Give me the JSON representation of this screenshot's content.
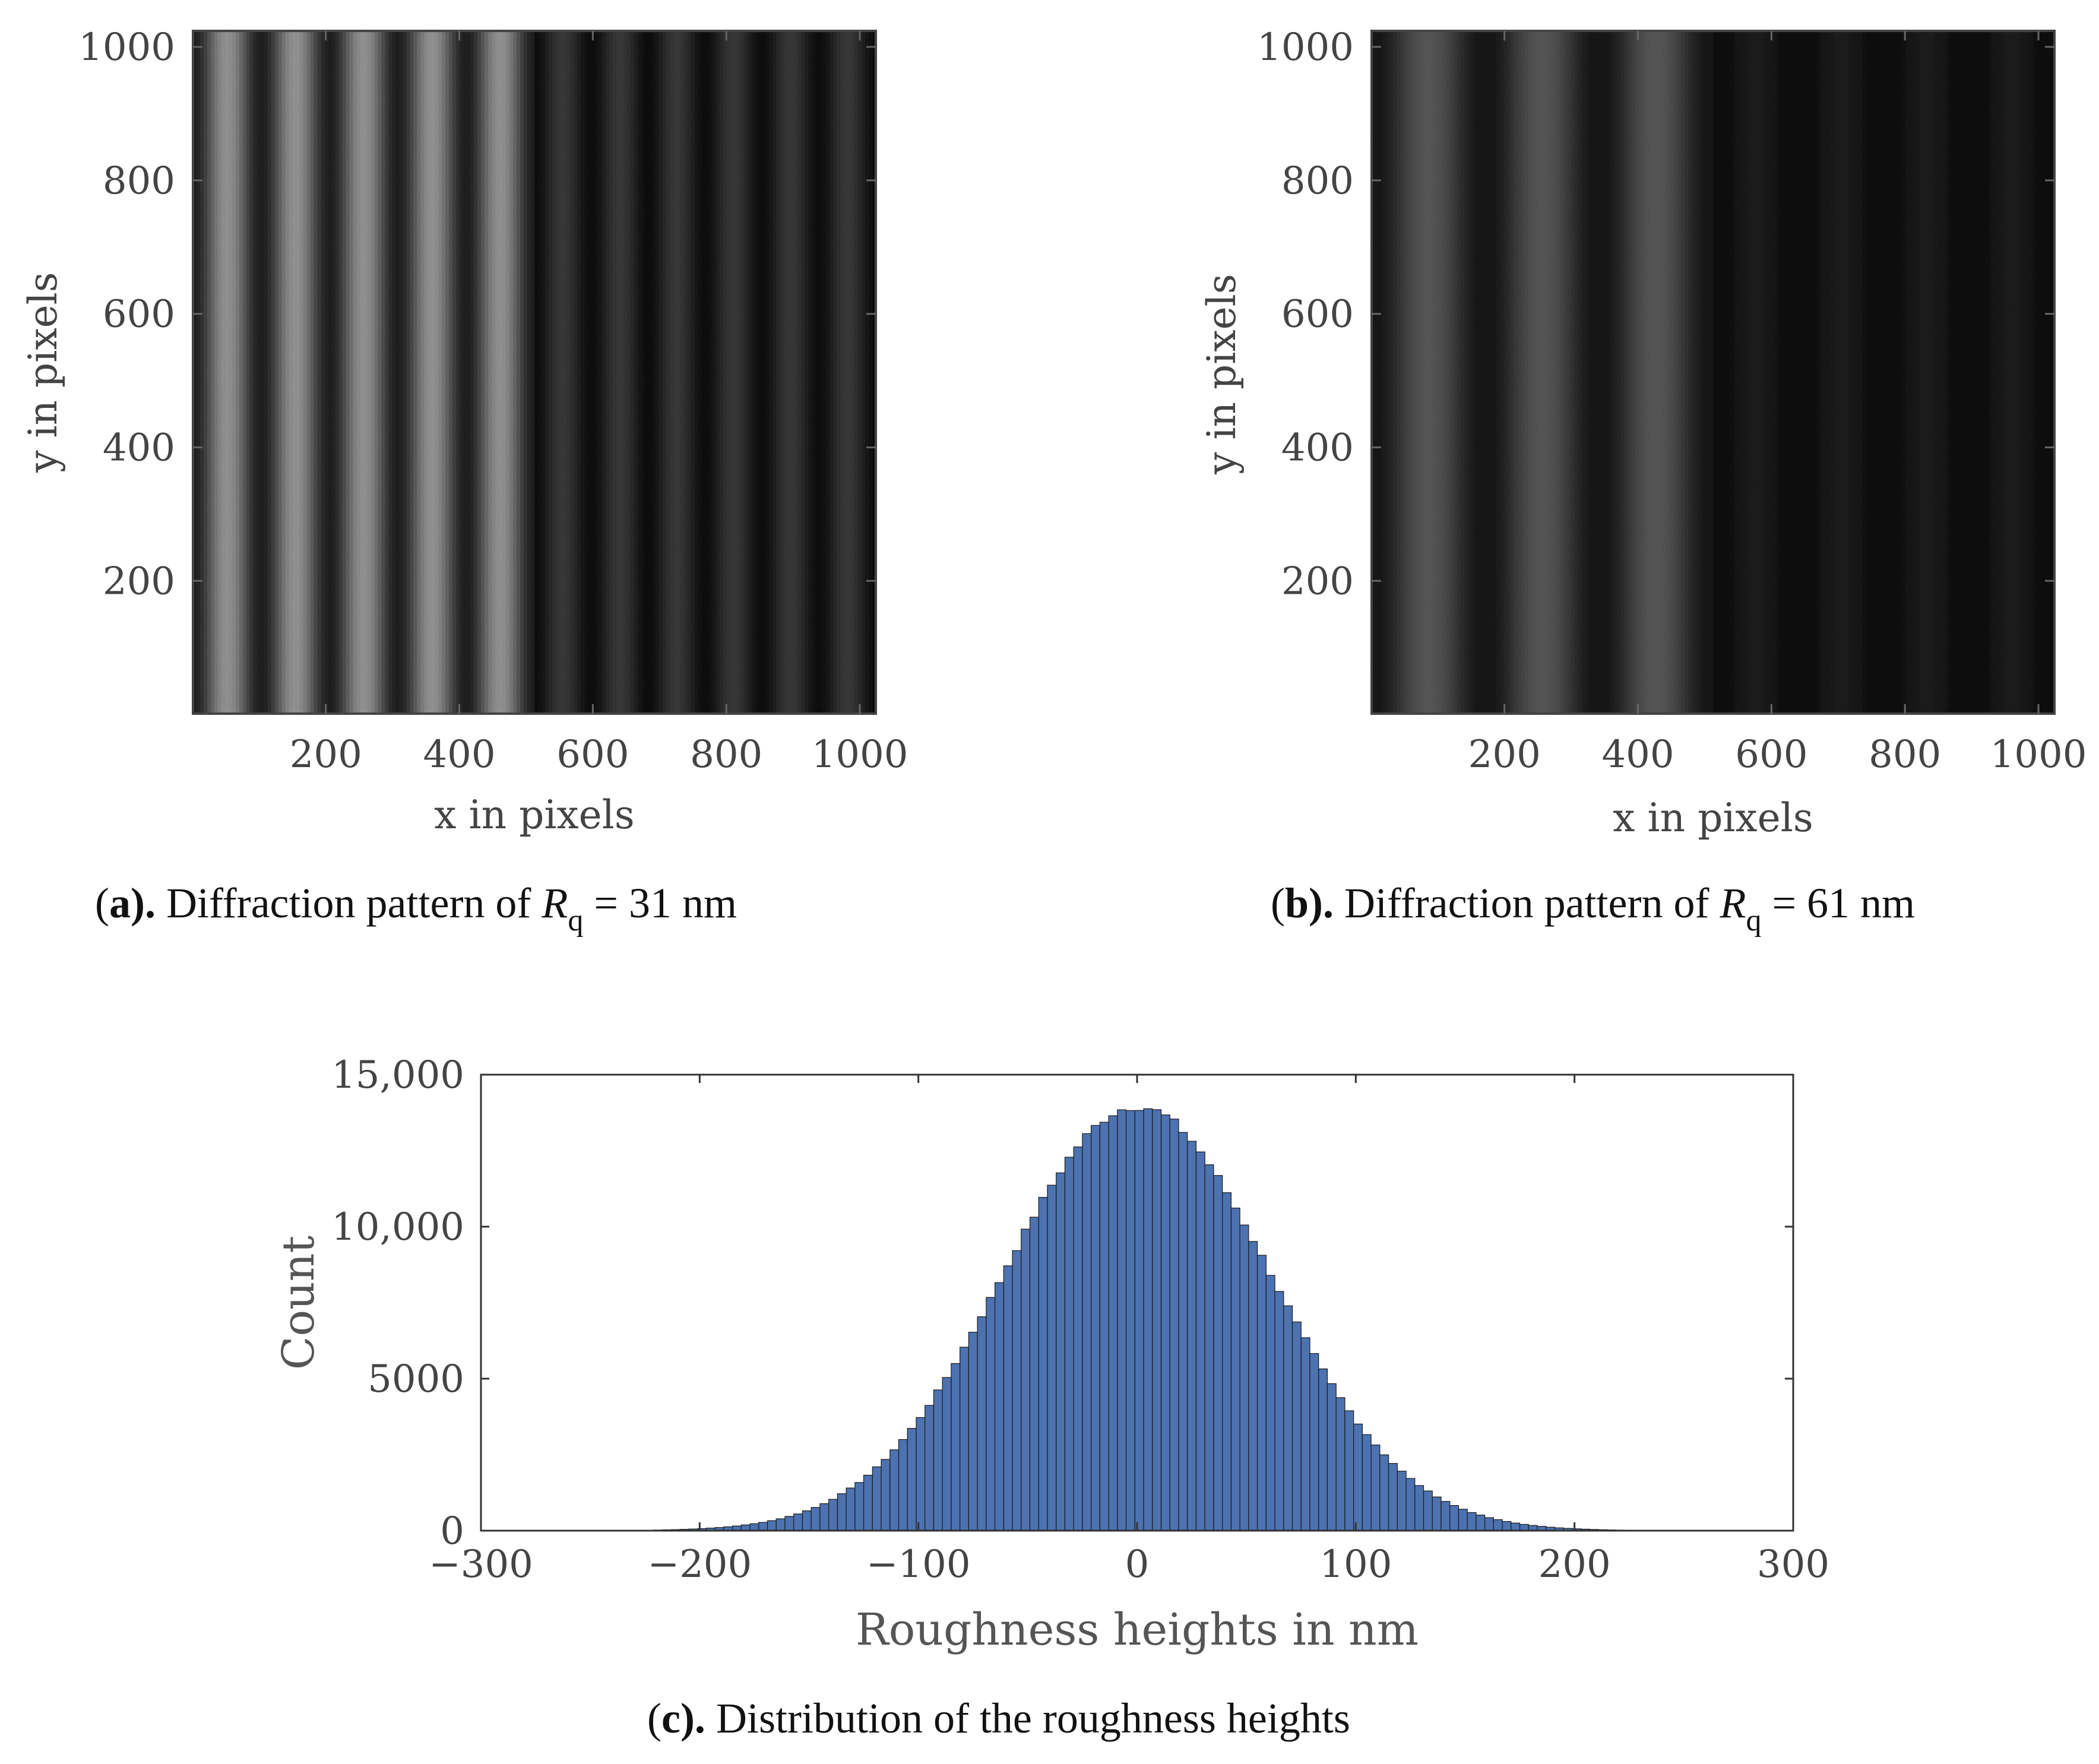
{
  "chart_data": [
    {
      "type": "heatmap",
      "panel": "a",
      "xlabel": "x in pixels",
      "ylabel": "y in pixels",
      "xlim": [
        1,
        1024
      ],
      "ylim": [
        1,
        1024
      ],
      "xticks": [
        "200",
        "400",
        "600",
        "800",
        "1000"
      ],
      "yticks": [
        "200",
        "400",
        "600",
        "800",
        "1000"
      ],
      "fringes": {
        "left_half_fringe_count": 5,
        "left_half_brightness": 0.62,
        "right_half_fringe_count": 6,
        "right_half_brightness": 0.22
      },
      "caption": {
        "letter": "a",
        "prefix": "(",
        "suffix": ").",
        "text": " Diffraction pattern of ",
        "symbol": "R",
        "subscript": "q",
        "relation": " = 31 nm"
      }
    },
    {
      "type": "heatmap",
      "panel": "b",
      "xlabel": "x in pixels",
      "ylabel": "y in pixels",
      "xlim": [
        1,
        1024
      ],
      "ylim": [
        1,
        1024
      ],
      "xticks": [
        "200",
        "400",
        "600",
        "800",
        "1000"
      ],
      "yticks": [
        "200",
        "400",
        "600",
        "800",
        "1000"
      ],
      "fringes": {
        "left_half_fringe_count": 3,
        "left_half_brightness": 0.36,
        "right_half_fringe_count": 4,
        "right_half_brightness": 0.1
      },
      "caption": {
        "letter": "b",
        "prefix": "(",
        "suffix": ").",
        "text": " Diffraction pattern of ",
        "symbol": "R",
        "subscript": "q",
        "relation": " = 61 nm"
      }
    },
    {
      "type": "bar",
      "panel": "c",
      "xlabel": "Roughness heights in nm",
      "ylabel": "Count",
      "xlim": [
        -300,
        300
      ],
      "ylim": [
        0,
        15000
      ],
      "xticks": [
        "−300",
        "−200",
        "−100",
        "0",
        "100",
        "200",
        "300"
      ],
      "yticks": [
        "0",
        "5000",
        "10,000",
        "15,000"
      ],
      "bar_color": "#4c72b0",
      "histogram": {
        "bin_start": -225,
        "bin_width": 4,
        "mean": 0,
        "sigma": 61,
        "peak": 13950
      },
      "caption": {
        "letter": "c",
        "prefix": "(",
        "suffix": ").",
        "text": " Distribution of the roughness heights"
      }
    }
  ]
}
